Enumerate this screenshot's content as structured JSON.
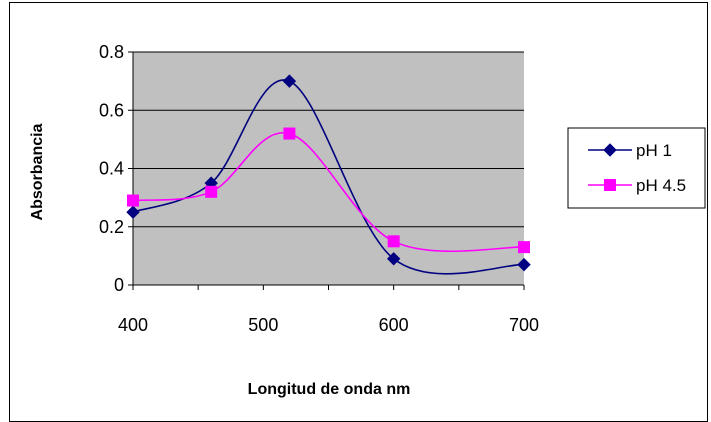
{
  "chart_data": {
    "type": "line",
    "xlabel": "Longitud de onda nm",
    "ylabel": "Absorbancia",
    "xlim": [
      400,
      700
    ],
    "ylim": [
      0,
      0.8
    ],
    "x_ticks": [
      "400",
      "500",
      "600",
      "700"
    ],
    "y_ticks": [
      "0",
      "0.2",
      "0.4",
      "0.6",
      "0.8"
    ],
    "grid": true,
    "legend_position": "right",
    "plot_background": "#c0c0c0",
    "series": [
      {
        "name": "pH 1",
        "color": "#000080",
        "marker": "diamond",
        "x": [
          400,
          460,
          520,
          600,
          700
        ],
        "y": [
          0.25,
          0.35,
          0.7,
          0.09,
          0.07
        ]
      },
      {
        "name": "pH 4.5",
        "color": "#ff00ff",
        "marker": "square",
        "x": [
          400,
          460,
          520,
          600,
          700
        ],
        "y": [
          0.29,
          0.32,
          0.52,
          0.15,
          0.13
        ]
      }
    ]
  }
}
